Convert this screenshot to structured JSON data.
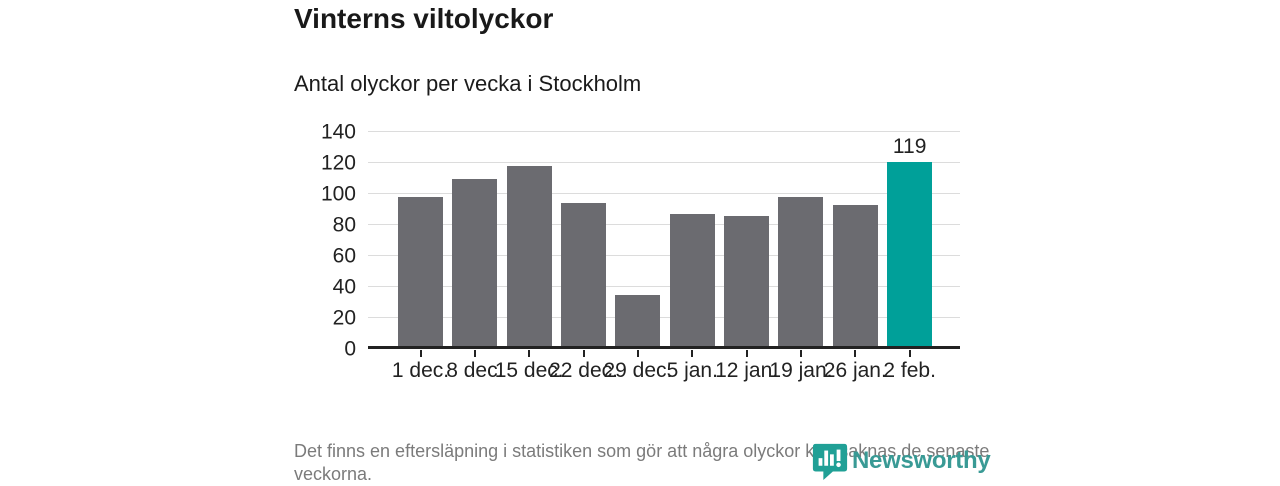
{
  "header": {
    "title": "Vinterns viltolyckor",
    "subtitle": "Antal olyckor per vecka i Stockholm"
  },
  "chart_data": {
    "type": "bar",
    "title": "Vinterns viltolyckor",
    "subtitle": "Antal olyckor per vecka i Stockholm",
    "categories": [
      "1 dec.",
      "8 dec.",
      "15 dec.",
      "22 dec.",
      "29 dec.",
      "5 jan.",
      "12 jan.",
      "19 jan.",
      "26 jan.",
      "2 feb."
    ],
    "values": [
      96,
      108,
      116,
      92,
      33,
      85,
      84,
      96,
      91,
      119
    ],
    "highlight_index": 9,
    "highlight_value_label": "119",
    "xlabel": "",
    "ylabel": "",
    "ylim": [
      0,
      140
    ],
    "yticks": [
      0,
      20,
      40,
      60,
      80,
      100,
      120,
      140
    ],
    "grid": true,
    "legend_position": "none",
    "colors": {
      "bar": "#6b6b70",
      "highlight": "#00a099",
      "gridline": "#dcdcdc",
      "axis": "#222222",
      "tick_label": "#222222",
      "value_label": "#222222"
    }
  },
  "footer": {
    "note": "Det finns en eftersläpning i statistiken som gör att några olyckor kan saknas de senaste veckorna.",
    "logo_text": "Newsworthy",
    "logo_color": "#399a95",
    "logo_icon_color": "#20a096"
  }
}
